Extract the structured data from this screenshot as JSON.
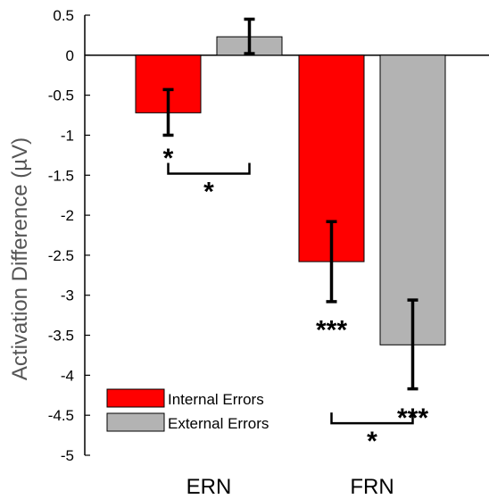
{
  "chart_data": {
    "type": "bar",
    "ylabel": "Activation Difference (µV)",
    "ylim": [
      -5,
      0.5
    ],
    "yticks": [
      "0.5",
      "0",
      "-0.5",
      "-1",
      "-1.5",
      "-2",
      "-2.5",
      "-3",
      "-3.5",
      "-4",
      "-4.5",
      "-5"
    ],
    "categories": [
      "ERN",
      "FRN"
    ],
    "series": [
      {
        "name": "Internal Errors",
        "color": "#ff0000",
        "values": [
          -0.72,
          -2.58
        ],
        "err_low": [
          -1.0,
          -3.08
        ],
        "err_high": [
          -0.43,
          -2.08
        ]
      },
      {
        "name": "External Errors",
        "color": "#b3b3b3",
        "values": [
          0.23,
          -3.62
        ],
        "err_low": [
          0.02,
          -4.17
        ],
        "err_high": [
          0.45,
          -3.06
        ]
      }
    ],
    "legend_position": "bottom-left",
    "significance": {
      "bar_marks": [
        {
          "category": 0,
          "series": 0,
          "label": "*",
          "y": -1.15
        },
        {
          "category": 1,
          "series": 0,
          "label": "***",
          "y": -3.3
        },
        {
          "category": 1,
          "series": 1,
          "label": "***",
          "y": -4.4
        }
      ],
      "brackets": [
        {
          "category": 0,
          "label": "*",
          "y": -1.48
        },
        {
          "category": 1,
          "label": "*",
          "y": -4.6
        }
      ]
    }
  }
}
